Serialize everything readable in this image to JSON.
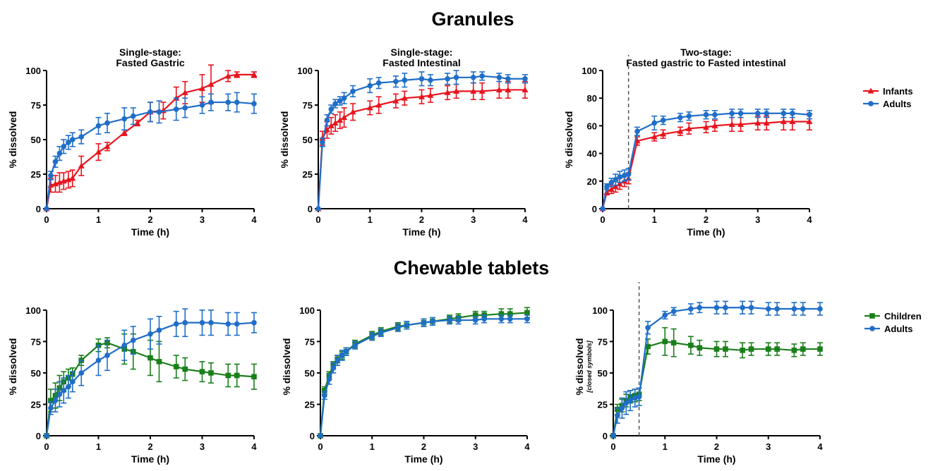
{
  "sections": {
    "granules_title": "Granules",
    "chewable_title": "Chewable tablets"
  },
  "colors": {
    "infants": "#e8141e",
    "adults": "#1f6ec8",
    "children": "#1a7f1a",
    "axis": "#000000",
    "dashed_line": "#555555"
  },
  "legends": {
    "granules": [
      {
        "label": "Infants",
        "color": "#e8141e",
        "marker": "triangle"
      },
      {
        "label": "Adults",
        "color": "#1f6ec8",
        "marker": "circle"
      }
    ],
    "chewable": [
      {
        "label": "Children",
        "color": "#1a7f1a",
        "marker": "square"
      },
      {
        "label": "Adults",
        "color": "#1f6ec8",
        "marker": "circle"
      }
    ]
  },
  "chart_data": [
    {
      "type": "line",
      "section": "Granules",
      "title_lines": [
        "Single-stage:",
        "Fasted Gastric"
      ],
      "xlabel": "Time (h)",
      "ylabel": "% dissolved",
      "ylabel_note": "",
      "xlim": [
        0,
        4
      ],
      "ylim": [
        0,
        100
      ],
      "xticks": [
        0,
        1,
        2,
        3,
        4
      ],
      "yticks": [
        0,
        25,
        50,
        75,
        100
      ],
      "dashed_x": null,
      "series": [
        {
          "name": "Infants",
          "color": "#e8141e",
          "marker": "triangle",
          "x": [
            0,
            0.08,
            0.17,
            0.25,
            0.33,
            0.42,
            0.5,
            0.67,
            1.0,
            1.17,
            1.5,
            1.75,
            2.0,
            2.25,
            2.5,
            2.67,
            3.0,
            3.17,
            3.5,
            3.67,
            4.0
          ],
          "y": [
            0,
            17,
            18,
            19,
            20,
            21,
            22,
            31,
            41,
            45,
            55,
            62,
            70,
            71,
            80,
            84,
            87,
            90,
            96,
            97,
            97
          ],
          "err": [
            0,
            5,
            6,
            7,
            6,
            6,
            6,
            7,
            6,
            3,
            2,
            2,
            7,
            6,
            8,
            8,
            10,
            14,
            4,
            2,
            2
          ]
        },
        {
          "name": "Adults",
          "color": "#1f6ec8",
          "marker": "circle",
          "x": [
            0,
            0.08,
            0.17,
            0.25,
            0.33,
            0.42,
            0.5,
            0.67,
            1.0,
            1.17,
            1.5,
            1.67,
            2.0,
            2.17,
            2.5,
            2.67,
            3.0,
            3.17,
            3.5,
            3.67,
            4.0
          ],
          "y": [
            0,
            24,
            34,
            40,
            45,
            48,
            50,
            52,
            60,
            62,
            65,
            67,
            70,
            70,
            72,
            73,
            75,
            77,
            77,
            77,
            76
          ],
          "err": [
            0,
            3,
            4,
            5,
            5,
            5,
            5,
            5,
            6,
            7,
            8,
            6,
            7,
            8,
            8,
            7,
            6,
            6,
            6,
            7,
            7
          ]
        }
      ]
    },
    {
      "type": "line",
      "section": "Granules",
      "title_lines": [
        "Single-stage:",
        "Fasted Intestinal"
      ],
      "xlabel": "Time (h)",
      "ylabel": "% dissolved",
      "ylabel_note": "",
      "xlim": [
        0,
        4
      ],
      "ylim": [
        0,
        100
      ],
      "xticks": [
        0,
        1,
        2,
        3,
        4
      ],
      "yticks": [
        0,
        25,
        50,
        75,
        100
      ],
      "dashed_x": null,
      "series": [
        {
          "name": "Infants",
          "color": "#e8141e",
          "marker": "triangle",
          "x": [
            0,
            0.08,
            0.17,
            0.25,
            0.33,
            0.42,
            0.5,
            0.67,
            1.0,
            1.17,
            1.5,
            1.67,
            2.0,
            2.17,
            2.5,
            2.67,
            3.0,
            3.17,
            3.5,
            3.67,
            4.0
          ],
          "y": [
            0,
            51,
            57,
            60,
            62,
            64,
            66,
            70,
            73,
            75,
            78,
            80,
            81,
            82,
            84,
            85,
            85,
            85,
            86,
            86,
            86
          ],
          "err": [
            0,
            5,
            6,
            6,
            6,
            6,
            7,
            6,
            5,
            6,
            5,
            5,
            5,
            5,
            5,
            5,
            6,
            6,
            6,
            6,
            6
          ]
        },
        {
          "name": "Adults",
          "color": "#1f6ec8",
          "marker": "circle",
          "x": [
            0,
            0.08,
            0.17,
            0.25,
            0.33,
            0.42,
            0.5,
            0.67,
            1.0,
            1.17,
            1.5,
            1.67,
            2.0,
            2.17,
            2.5,
            2.67,
            3.0,
            3.17,
            3.5,
            3.67,
            4.0
          ],
          "y": [
            0,
            48,
            64,
            72,
            76,
            78,
            80,
            85,
            89,
            91,
            92,
            93,
            94,
            93,
            94,
            95,
            95,
            96,
            95,
            94,
            94
          ],
          "err": [
            0,
            3,
            4,
            3,
            3,
            3,
            4,
            4,
            5,
            4,
            4,
            5,
            5,
            4,
            4,
            5,
            4,
            3,
            3,
            3,
            3
          ]
        }
      ]
    },
    {
      "type": "line",
      "section": "Granules",
      "title_lines": [
        "Two-stage:",
        "Fasted gastric to Fasted intestinal"
      ],
      "xlabel": "Time (h)",
      "ylabel": "% dissolved",
      "ylabel_note": "",
      "xlim": [
        0,
        4
      ],
      "ylim": [
        0,
        100
      ],
      "xticks": [
        0,
        1,
        2,
        3,
        4
      ],
      "yticks": [
        0,
        20,
        40,
        60,
        80,
        100
      ],
      "dashed_x": 0.5,
      "series": [
        {
          "name": "Infants",
          "color": "#e8141e",
          "marker": "triangle",
          "x": [
            0,
            0.08,
            0.17,
            0.25,
            0.33,
            0.42,
            0.5,
            0.67,
            1.0,
            1.17,
            1.5,
            1.67,
            2.0,
            2.17,
            2.5,
            2.67,
            3.0,
            3.17,
            3.5,
            3.67,
            4.0
          ],
          "y": [
            0,
            12,
            14,
            16,
            18,
            20,
            22,
            49,
            52,
            54,
            56,
            58,
            59,
            60,
            61,
            61,
            62,
            62,
            63,
            63,
            63
          ],
          "err": [
            0,
            2,
            3,
            4,
            4,
            4,
            4,
            3,
            3,
            3,
            3,
            4,
            4,
            4,
            5,
            5,
            5,
            5,
            6,
            6,
            6
          ]
        },
        {
          "name": "Adults",
          "color": "#1f6ec8",
          "marker": "circle",
          "x": [
            0,
            0.08,
            0.17,
            0.25,
            0.33,
            0.42,
            0.5,
            0.67,
            1.0,
            1.17,
            1.5,
            1.67,
            2.0,
            2.17,
            2.5,
            2.67,
            3.0,
            3.17,
            3.5,
            3.67,
            4.0
          ],
          "y": [
            0,
            16,
            19,
            21,
            23,
            24,
            25,
            56,
            62,
            64,
            66,
            67,
            68,
            68,
            69,
            69,
            69,
            69,
            69,
            69,
            68
          ],
          "err": [
            0,
            2,
            3,
            4,
            4,
            4,
            4,
            3,
            5,
            3,
            3,
            3,
            3,
            3,
            3,
            3,
            3,
            3,
            3,
            3,
            3
          ]
        }
      ]
    },
    {
      "type": "line",
      "section": "Chewable tablets",
      "title_lines": [],
      "xlabel": "Time (h)",
      "ylabel": "% dissolved",
      "ylabel_note": "",
      "xlim": [
        0,
        4
      ],
      "ylim": [
        0,
        110
      ],
      "xticks": [
        0,
        1,
        2,
        3,
        4
      ],
      "yticks": [
        0,
        25,
        50,
        75,
        100
      ],
      "dashed_x": null,
      "series": [
        {
          "name": "Children",
          "color": "#1a7f1a",
          "marker": "square",
          "x": [
            0,
            0.08,
            0.17,
            0.25,
            0.33,
            0.42,
            0.5,
            0.67,
            1.0,
            1.17,
            1.5,
            1.67,
            2.0,
            2.17,
            2.5,
            2.67,
            3.0,
            3.17,
            3.5,
            3.67,
            4.0
          ],
          "y": [
            0,
            28,
            32,
            38,
            43,
            46,
            49,
            60,
            72,
            74,
            69,
            67,
            62,
            59,
            55,
            53,
            51,
            50,
            48,
            48,
            47
          ],
          "err": [
            0,
            9,
            10,
            10,
            8,
            7,
            5,
            4,
            5,
            4,
            12,
            14,
            14,
            16,
            9,
            9,
            8,
            8,
            9,
            9,
            10
          ]
        },
        {
          "name": "Adults",
          "color": "#1f6ec8",
          "marker": "circle",
          "x": [
            0,
            0.08,
            0.17,
            0.25,
            0.33,
            0.42,
            0.5,
            0.67,
            1.0,
            1.17,
            1.5,
            1.67,
            2.0,
            2.17,
            2.5,
            2.67,
            3.0,
            3.17,
            3.5,
            3.67,
            4.0
          ],
          "y": [
            0,
            22,
            28,
            33,
            36,
            39,
            43,
            50,
            60,
            64,
            72,
            76,
            81,
            84,
            89,
            90,
            90,
            90,
            89,
            89,
            90
          ],
          "err": [
            0,
            5,
            9,
            10,
            10,
            9,
            8,
            10,
            12,
            12,
            12,
            11,
            12,
            11,
            10,
            11,
            10,
            10,
            9,
            9,
            8
          ]
        }
      ]
    },
    {
      "type": "line",
      "section": "Chewable tablets",
      "title_lines": [],
      "xlabel": "Time (h)",
      "ylabel": "% dissolved",
      "ylabel_note": "",
      "xlim": [
        0,
        4
      ],
      "ylim": [
        0,
        110
      ],
      "xticks": [
        0,
        1,
        2,
        3,
        4
      ],
      "yticks": [
        0,
        25,
        50,
        75,
        100
      ],
      "dashed_x": null,
      "series": [
        {
          "name": "Children",
          "color": "#1a7f1a",
          "marker": "square",
          "x": [
            0,
            0.08,
            0.17,
            0.25,
            0.33,
            0.42,
            0.5,
            0.67,
            1.0,
            1.17,
            1.5,
            1.67,
            2.0,
            2.17,
            2.5,
            2.67,
            3.0,
            3.17,
            3.5,
            3.67,
            4.0
          ],
          "y": [
            0,
            36,
            48,
            56,
            61,
            64,
            67,
            73,
            80,
            83,
            87,
            88,
            90,
            91,
            93,
            94,
            96,
            96,
            97,
            97,
            98
          ],
          "err": [
            0,
            3,
            3,
            3,
            3,
            3,
            3,
            3,
            3,
            3,
            3,
            3,
            3,
            3,
            3,
            3,
            3,
            3,
            4,
            4,
            4
          ]
        },
        {
          "name": "Adults",
          "color": "#1f6ec8",
          "marker": "circle",
          "x": [
            0,
            0.08,
            0.17,
            0.25,
            0.33,
            0.42,
            0.5,
            0.67,
            1.0,
            1.17,
            1.5,
            1.67,
            2.0,
            2.17,
            2.5,
            2.67,
            3.0,
            3.17,
            3.5,
            3.67,
            4.0
          ],
          "y": [
            0,
            32,
            45,
            54,
            60,
            64,
            67,
            72,
            79,
            82,
            86,
            88,
            90,
            91,
            92,
            92,
            92,
            93,
            93,
            93,
            93
          ],
          "err": [
            0,
            3,
            4,
            4,
            4,
            4,
            3,
            3,
            3,
            3,
            3,
            3,
            3,
            3,
            3,
            3,
            3,
            3,
            3,
            3,
            3
          ]
        }
      ]
    },
    {
      "type": "line",
      "section": "Chewable tablets",
      "title_lines": [],
      "xlabel": "Time (h)",
      "ylabel": "% dissolved",
      "ylabel_note": "[closed symbols]",
      "xlim": [
        0,
        4
      ],
      "ylim": [
        0,
        110
      ],
      "xticks": [
        0,
        1,
        2,
        3,
        4
      ],
      "yticks": [
        0,
        25,
        50,
        75,
        100
      ],
      "dashed_x": 0.5,
      "series": [
        {
          "name": "Children",
          "color": "#1a7f1a",
          "marker": "square",
          "x": [
            0,
            0.08,
            0.17,
            0.25,
            0.33,
            0.42,
            0.5,
            0.67,
            1.0,
            1.17,
            1.5,
            1.67,
            2.0,
            2.17,
            2.5,
            2.67,
            3.0,
            3.17,
            3.5,
            3.67,
            4.0
          ],
          "y": [
            0,
            21,
            24,
            28,
            31,
            32,
            33,
            71,
            75,
            74,
            72,
            70,
            69,
            69,
            68,
            69,
            69,
            69,
            68,
            69,
            69
          ],
          "err": [
            0,
            4,
            5,
            5,
            5,
            5,
            5,
            6,
            11,
            11,
            7,
            6,
            6,
            6,
            6,
            5,
            5,
            5,
            5,
            5,
            5
          ]
        },
        {
          "name": "Adults",
          "color": "#1f6ec8",
          "marker": "circle",
          "x": [
            0,
            0.08,
            0.17,
            0.25,
            0.33,
            0.42,
            0.5,
            0.67,
            1.0,
            1.17,
            1.5,
            1.67,
            2.0,
            2.17,
            2.5,
            2.67,
            3.0,
            3.17,
            3.5,
            3.67,
            4.0
          ],
          "y": [
            0,
            16,
            22,
            26,
            28,
            30,
            31,
            86,
            96,
            99,
            101,
            102,
            102,
            102,
            102,
            102,
            101,
            101,
            101,
            101,
            101
          ],
          "err": [
            0,
            6,
            8,
            9,
            8,
            7,
            7,
            5,
            3,
            3,
            4,
            4,
            5,
            5,
            5,
            5,
            5,
            5,
            5,
            5,
            5
          ]
        }
      ]
    }
  ]
}
